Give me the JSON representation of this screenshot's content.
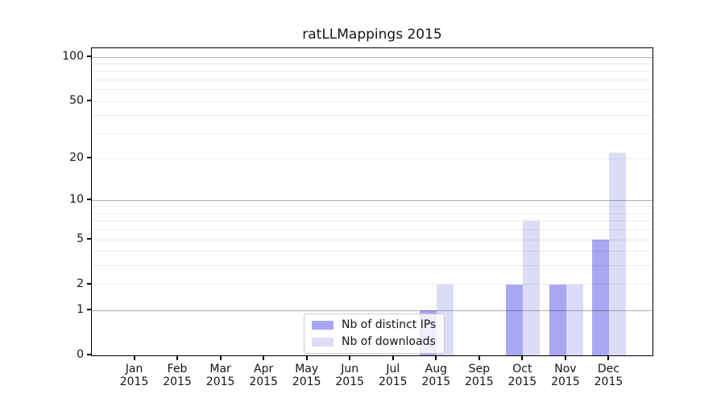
{
  "title": "ratLLMappings 2015",
  "chart_data": {
    "type": "bar",
    "title": "ratLLMappings 2015",
    "scale": "log1p",
    "grid": "horizontal",
    "categories": [
      "Jan 2015",
      "Feb 2015",
      "Mar 2015",
      "Apr 2015",
      "May 2015",
      "Jun 2015",
      "Jul 2015",
      "Aug 2015",
      "Sep 2015",
      "Oct 2015",
      "Nov 2015",
      "Dec 2015"
    ],
    "series": [
      {
        "name": "Nb of distinct IPs",
        "color": "#a8a8f2",
        "values": [
          0,
          0,
          0,
          0,
          0,
          0,
          0,
          1,
          0,
          2,
          2,
          5
        ]
      },
      {
        "name": "Nb of downloads",
        "color": "#dcdcf8",
        "values": [
          0,
          0,
          0,
          0,
          0,
          0,
          0,
          2,
          0,
          7,
          2,
          22
        ]
      }
    ],
    "ylim": [
      0,
      115
    ],
    "yticks": [
      0,
      1,
      2,
      5,
      10,
      20,
      50,
      100
    ],
    "major_grid_values": [
      1,
      10,
      100
    ],
    "minor_grid_values": [
      2,
      3,
      4,
      5,
      6,
      7,
      8,
      9,
      20,
      30,
      40,
      50,
      60,
      70,
      80,
      90
    ],
    "legend_position": "lower center"
  },
  "legend": {
    "items": [
      {
        "label": "Nb of distinct IPs",
        "color": "#a8a8f2"
      },
      {
        "label": "Nb of downloads",
        "color": "#dcdcf8"
      }
    ]
  },
  "colors": {
    "major_grid": "#b0b0b0",
    "minor_grid": "#ececec",
    "axis": "#000000",
    "background": "#ffffff"
  }
}
